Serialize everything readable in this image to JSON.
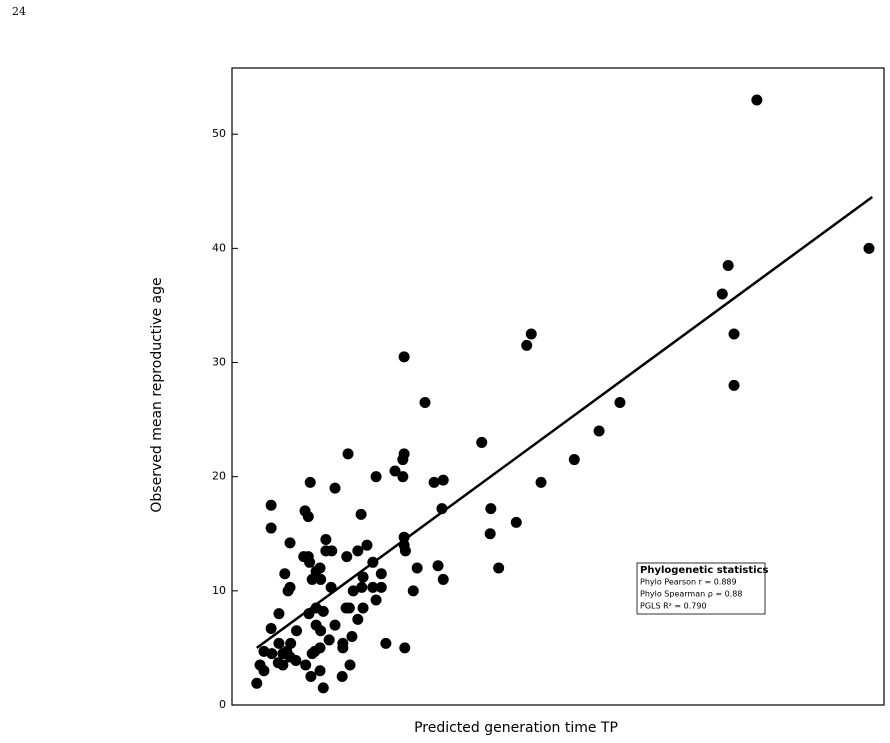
{
  "page_number": "24",
  "chart_data": {
    "type": "scatter",
    "x_label": "Predicted generation time TP",
    "y_label": "Observed mean reproductive age",
    "xlim": [
      0,
      100
    ],
    "ylim": [
      0,
      55.8
    ],
    "yticks": [
      0,
      10,
      20,
      30,
      40,
      50
    ],
    "series": [
      {
        "color": "#000000",
        "x": [
          80.5,
          97.7,
          76.1,
          75.2,
          77.0,
          77.0,
          45.9,
          45.2,
          26.4,
          59.5,
          29.6,
          56.3,
          38.3,
          17.8,
          26.4,
          26.2,
          52.5,
          25.0,
          22.1,
          26.2,
          31.0,
          32.4,
          47.4,
          12.0,
          15.8,
          6.0,
          11.2,
          11.7,
          19.8,
          32.2,
          39.7,
          6.0,
          43.6,
          39.6,
          26.4,
          8.9,
          14.4,
          20.7,
          26.4,
          26.6,
          14.4,
          15.3,
          19.3,
          11.7,
          11.0,
          17.6,
          21.6,
          11.9,
          31.6,
          28.4,
          40.9,
          13.5,
          12.9,
          8.1,
          22.9,
          12.3,
          13.6,
          32.4,
          20.1,
          15.2,
          8.9,
          21.6,
          22.9,
          19.9,
          8.6,
          18.6,
          27.8,
          22.1,
          20.1,
          17.5,
          18.0,
          12.9,
          14.0,
          7.2,
          11.8,
          19.3,
          12.9,
          15.8,
          6.0,
          13.6,
          9.9,
          18.4,
          14.9,
          23.6,
          7.2,
          9.0,
          17.0,
          13.5,
          26.5,
          17.0,
          12.7,
          4.9,
          8.4,
          12.3,
          6.1,
          7.8,
          8.9,
          9.8,
          7.1,
          7.8,
          4.3,
          11.3,
          18.1,
          4.9,
          13.5,
          12.1,
          16.9,
          3.8,
          14.0
        ],
        "values": [
          53.0,
          40.0,
          38.5,
          36.0,
          32.5,
          28.0,
          32.5,
          31.5,
          30.5,
          26.5,
          26.5,
          24.0,
          23.0,
          22.0,
          22.0,
          21.5,
          21.5,
          20.5,
          20.0,
          20.0,
          19.5,
          19.7,
          19.5,
          19.5,
          19.0,
          17.5,
          17.0,
          16.5,
          16.7,
          17.2,
          17.2,
          15.5,
          16.0,
          15.0,
          14.7,
          14.2,
          14.5,
          14.0,
          14.0,
          13.5,
          13.5,
          13.5,
          13.5,
          13.0,
          13.0,
          13.0,
          12.5,
          12.5,
          12.2,
          12.0,
          12.0,
          12.0,
          11.7,
          11.5,
          11.5,
          11.0,
          11.0,
          11.0,
          11.2,
          10.3,
          10.3,
          10.3,
          10.3,
          10.3,
          10.0,
          10.0,
          10.0,
          9.2,
          8.5,
          8.5,
          8.5,
          8.5,
          8.2,
          8.0,
          8.0,
          7.5,
          7.0,
          7.0,
          6.7,
          6.5,
          6.5,
          6.0,
          5.7,
          5.4,
          5.4,
          5.4,
          5.4,
          5.0,
          5.0,
          5.0,
          4.7,
          4.7,
          4.7,
          4.5,
          4.5,
          4.5,
          4.2,
          3.9,
          3.7,
          3.5,
          3.5,
          3.5,
          3.5,
          3.0,
          3.0,
          2.5,
          2.5,
          1.9,
          1.5
        ]
      }
    ],
    "fit_line": {
      "color": "#000000",
      "x": [
        3.8,
        98.2
      ],
      "values": [
        5.0,
        44.5
      ]
    },
    "stats_box": {
      "title": "Phylogenetic statistics",
      "lines": [
        "Phylo Pearson r = 0.889",
        "Phylo Spearman ρ = 0.88",
        "PGLS R² = 0.790"
      ]
    }
  }
}
